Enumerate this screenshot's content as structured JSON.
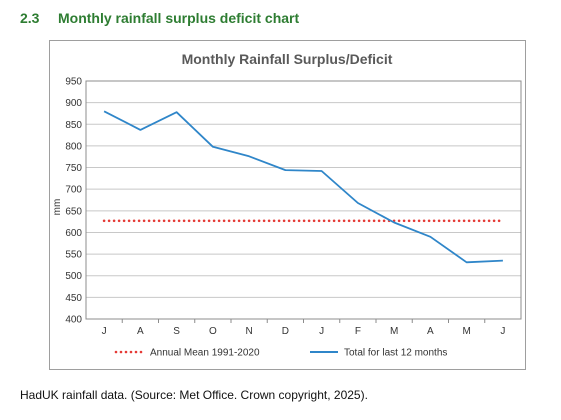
{
  "heading": {
    "number": "2.3",
    "title": "Monthly rainfall surplus deficit chart",
    "color": "#2e7d32"
  },
  "footer_note": "HadUK rainfall data. (Source: Met Office. Crown copyright, 2025).",
  "chart_data": {
    "type": "line",
    "title": "Monthly Rainfall Surplus/Deficit",
    "xlabel": "",
    "ylabel": "mm",
    "categories": [
      "J",
      "A",
      "S",
      "O",
      "N",
      "D",
      "J",
      "F",
      "M",
      "A",
      "M",
      "J"
    ],
    "ylim": [
      400,
      950
    ],
    "yticks": [
      400,
      450,
      500,
      550,
      600,
      650,
      700,
      750,
      800,
      850,
      900,
      950
    ],
    "grid": true,
    "legend_position": "bottom",
    "series": [
      {
        "name": "Annual Mean 1991-2020",
        "values": [
          627,
          627,
          627,
          627,
          627,
          627,
          627,
          627,
          627,
          627,
          627,
          627
        ],
        "color": "#e53935",
        "style": "dotted"
      },
      {
        "name": "Total for last 12 months",
        "values": [
          880,
          837,
          878,
          798,
          776,
          744,
          742,
          668,
          623,
          590,
          531,
          535
        ],
        "color": "#2f86c9",
        "style": "solid"
      }
    ]
  }
}
